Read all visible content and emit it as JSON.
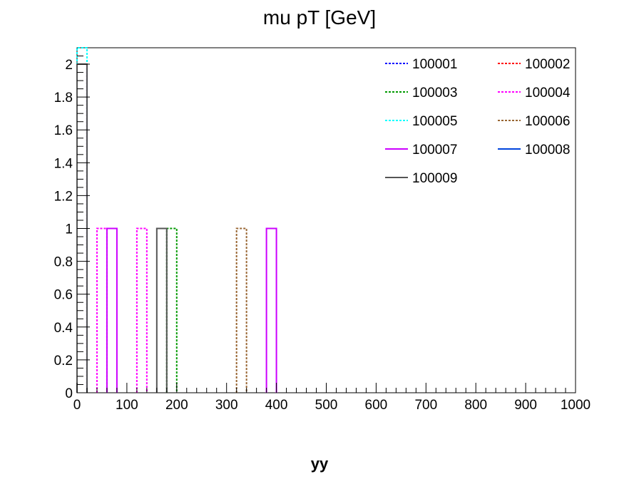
{
  "chart_data": {
    "type": "line",
    "style": "step-histogram",
    "title": "mu pT [GeV]",
    "xlabel": "yy",
    "ylabel": "",
    "xlim": [
      0,
      1000
    ],
    "ylim": [
      0,
      2.1
    ],
    "bin_width": 20,
    "x_ticks": [
      "0",
      "100",
      "200",
      "300",
      "400",
      "500",
      "600",
      "700",
      "800",
      "900",
      "1000"
    ],
    "y_ticks": [
      "0",
      "0.2",
      "0.4",
      "0.6",
      "0.8",
      "1",
      "1.2",
      "1.4",
      "1.6",
      "1.8",
      "2"
    ],
    "grid": false,
    "legend_position": "top-right",
    "series": [
      {
        "name": "100001",
        "color": "#0000ff",
        "dash": "dotted",
        "bins": [
          [
            0,
            2
          ]
        ]
      },
      {
        "name": "100002",
        "color": "#ff0000",
        "dash": "dotted",
        "bins": [
          [
            0,
            2
          ]
        ]
      },
      {
        "name": "100003",
        "color": "#009900",
        "dash": "dotted",
        "bins": [
          [
            0,
            2
          ],
          [
            180,
            1
          ]
        ]
      },
      {
        "name": "100004",
        "color": "#ff00ff",
        "dash": "dotted",
        "bins": [
          [
            0,
            2
          ],
          [
            40,
            1
          ],
          [
            120,
            1
          ]
        ]
      },
      {
        "name": "100005",
        "color": "#00ffff",
        "dash": "dotted",
        "bins": [
          [
            0,
            2.1
          ]
        ]
      },
      {
        "name": "100006",
        "color": "#996633",
        "dash": "dotted",
        "bins": [
          [
            0,
            2
          ],
          [
            320,
            1
          ]
        ]
      },
      {
        "name": "100007",
        "color": "#cc00ff",
        "dash": "solid",
        "bins": [
          [
            0,
            2
          ],
          [
            60,
            1
          ],
          [
            380,
            1
          ]
        ]
      },
      {
        "name": "100008",
        "color": "#0044dd",
        "dash": "solid",
        "bins": [
          [
            0,
            2
          ]
        ]
      },
      {
        "name": "100009",
        "color": "#555555",
        "dash": "solid",
        "bins": [
          [
            0,
            2
          ],
          [
            160,
            1
          ]
        ]
      }
    ]
  }
}
